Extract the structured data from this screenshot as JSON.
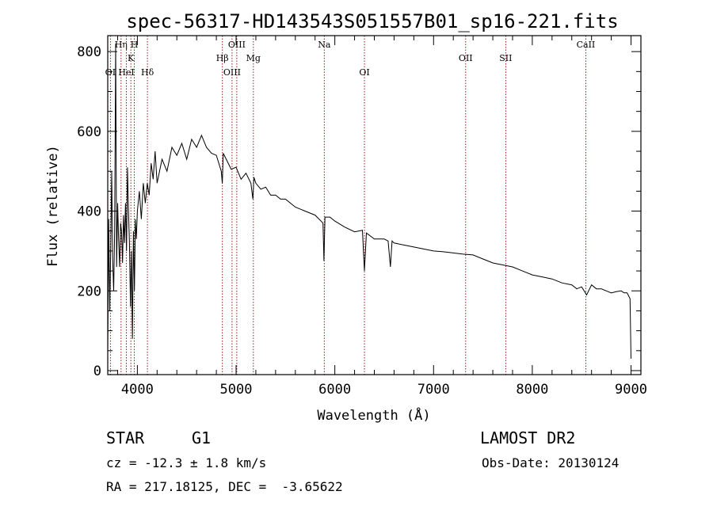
{
  "chart_data": {
    "type": "line",
    "title": "spec-56317-HD143543S051557B01_sp16-221.fits",
    "xlabel": "Wavelength (Å)",
    "ylabel": "Flux (relative)",
    "xlim": [
      3700,
      9100
    ],
    "ylim": [
      -10,
      840
    ],
    "xticks": [
      4000,
      5000,
      6000,
      7000,
      8000,
      9000
    ],
    "yticks": [
      0,
      200,
      400,
      600,
      800
    ],
    "grid": false,
    "line_color": "#000000",
    "marker_color": "#8b0000",
    "lines": [
      {
        "label": "OI",
        "x": 3727,
        "row": 2
      },
      {
        "label": "Hη",
        "x": 3835,
        "row": 0
      },
      {
        "label": "HeI",
        "x": 3889,
        "row": 2
      },
      {
        "label": "K",
        "x": 3934,
        "row": 1
      },
      {
        "label": "H",
        "x": 3969,
        "row": 0
      },
      {
        "label": "Hδ",
        "x": 4102,
        "row": 2
      },
      {
        "label": "Hβ",
        "x": 4861,
        "row": 1
      },
      {
        "label": "OIII",
        "x": 4959,
        "row": 2
      },
      {
        "label": "OIII",
        "x": 5007,
        "row": 0
      },
      {
        "label": "Mg",
        "x": 5175,
        "row": 1
      },
      {
        "label": "Na",
        "x": 5893,
        "row": 0
      },
      {
        "label": "OI",
        "x": 6300,
        "row": 2
      },
      {
        "label": "OII",
        "x": 7325,
        "row": 1
      },
      {
        "label": "SII",
        "x": 7731,
        "row": 1
      },
      {
        "label": "CaII",
        "x": 8542,
        "row": 0
      }
    ],
    "series": [
      {
        "x": [
          3700,
          3710,
          3720,
          3730,
          3740,
          3750,
          3760,
          3770,
          3780,
          3790,
          3800,
          3810,
          3820,
          3830,
          3840,
          3850,
          3860,
          3870,
          3880,
          3890,
          3900,
          3910,
          3920,
          3930,
          3940,
          3950,
          3960,
          3970,
          3980,
          3990,
          4000,
          4020,
          4040,
          4060,
          4080,
          4100,
          4120,
          4140,
          4160,
          4180,
          4200,
          4250,
          4300,
          4350,
          4400,
          4450,
          4500,
          4550,
          4600,
          4650,
          4700,
          4750,
          4800,
          4850,
          4860,
          4870,
          4900,
          4950,
          5000,
          5050,
          5100,
          5150,
          5170,
          5180,
          5200,
          5250,
          5300,
          5350,
          5400,
          5450,
          5500,
          5600,
          5700,
          5800,
          5880,
          5890,
          5900,
          5950,
          6000,
          6100,
          6200,
          6280,
          6300,
          6320,
          6400,
          6500,
          6540,
          6563,
          6580,
          6600,
          6700,
          6800,
          6900,
          7000,
          7100,
          7200,
          7300,
          7400,
          7500,
          7600,
          7700,
          7800,
          7900,
          8000,
          8100,
          8200,
          8300,
          8400,
          8450,
          8500,
          8550,
          8600,
          8650,
          8700,
          8750,
          8800,
          8850,
          8900,
          8930,
          8960,
          8990,
          9000
        ],
        "y": [
          50,
          380,
          150,
          300,
          500,
          280,
          200,
          350,
          820,
          260,
          420,
          330,
          260,
          370,
          350,
          270,
          390,
          320,
          420,
          300,
          510,
          400,
          320,
          160,
          300,
          80,
          350,
          200,
          380,
          330,
          400,
          450,
          380,
          470,
          420,
          470,
          440,
          520,
          480,
          550,
          470,
          530,
          500,
          560,
          540,
          570,
          530,
          580,
          560,
          590,
          560,
          545,
          540,
          500,
          470,
          545,
          530,
          505,
          510,
          480,
          495,
          470,
          430,
          485,
          470,
          455,
          460,
          440,
          440,
          430,
          430,
          410,
          400,
          390,
          370,
          275,
          385,
          385,
          375,
          360,
          348,
          352,
          250,
          345,
          330,
          330,
          325,
          260,
          325,
          320,
          315,
          310,
          305,
          300,
          298,
          295,
          292,
          290,
          280,
          270,
          265,
          260,
          250,
          240,
          235,
          230,
          220,
          215,
          205,
          210,
          190,
          215,
          205,
          205,
          200,
          195,
          198,
          200,
          195,
          195,
          180,
          30
        ]
      }
    ],
    "footer": {
      "object_type": "STAR",
      "subclass": "G1",
      "survey": "LAMOST DR2",
      "cz": "cz = -12.3 ± 1.8 km/s",
      "obs_date": "Obs-Date: 20130124",
      "coords": "RA = 217.18125, DEC =  -3.65622"
    }
  }
}
